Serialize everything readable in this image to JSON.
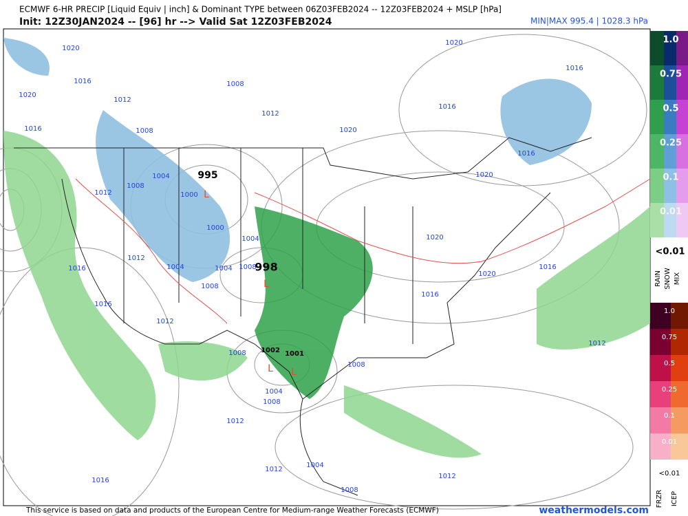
{
  "header": {
    "title": "ECMWF 6-HR PRECIP [Liquid Equiv | inch] & Dominant TYPE between 06Z03FEB2024 -- 12Z03FEB2024 + MSLP [hPa]",
    "init": "Init: 12Z30JAN2024 -- [96] hr --> Valid Sat 12Z03FEB2024",
    "minmax": "MIN|MAX 995.4 | 1028.3 hPa"
  },
  "map": {
    "isobar_labels": [
      "1020",
      "1016",
      "1020",
      "1016",
      "1012",
      "1008",
      "1008",
      "1012",
      "1020",
      "1016",
      "1016",
      "1020",
      "1016",
      "1020",
      "1012",
      "1008",
      "1004",
      "1000",
      "1000",
      "1004",
      "1004",
      "1004",
      "1008",
      "1012",
      "1016",
      "1016",
      "1008",
      "1012",
      "1020",
      "1016",
      "1020",
      "1016",
      "1012",
      "1008",
      "1008",
      "1004",
      "1008",
      "1012",
      "1012",
      "1004",
      "1008",
      "1012",
      "1016"
    ],
    "pressure_centers": [
      "995",
      "998",
      "1002",
      "1001"
    ],
    "low_markers": [
      "L",
      "L",
      "L",
      "L"
    ]
  },
  "legend": {
    "rain_snow_mix_scale": [
      "1.0",
      "0.75",
      "0.5",
      "0.25",
      "0.1",
      "0.01"
    ],
    "below": "<0.01",
    "types": [
      "RAIN",
      "SNOW",
      "MIX"
    ],
    "frzr_icep_scale": [
      "1.0",
      "0.75",
      "0.5",
      "0.25",
      "0.1",
      "0.01"
    ],
    "below2": "<0.01",
    "types2": [
      "FRZR",
      "ICEP"
    ]
  },
  "footer": {
    "notice": "This service is based on data and products of the European Centre for Medium-range Weather Forecasts (ECMWF)",
    "site": "weathermodels.com"
  }
}
